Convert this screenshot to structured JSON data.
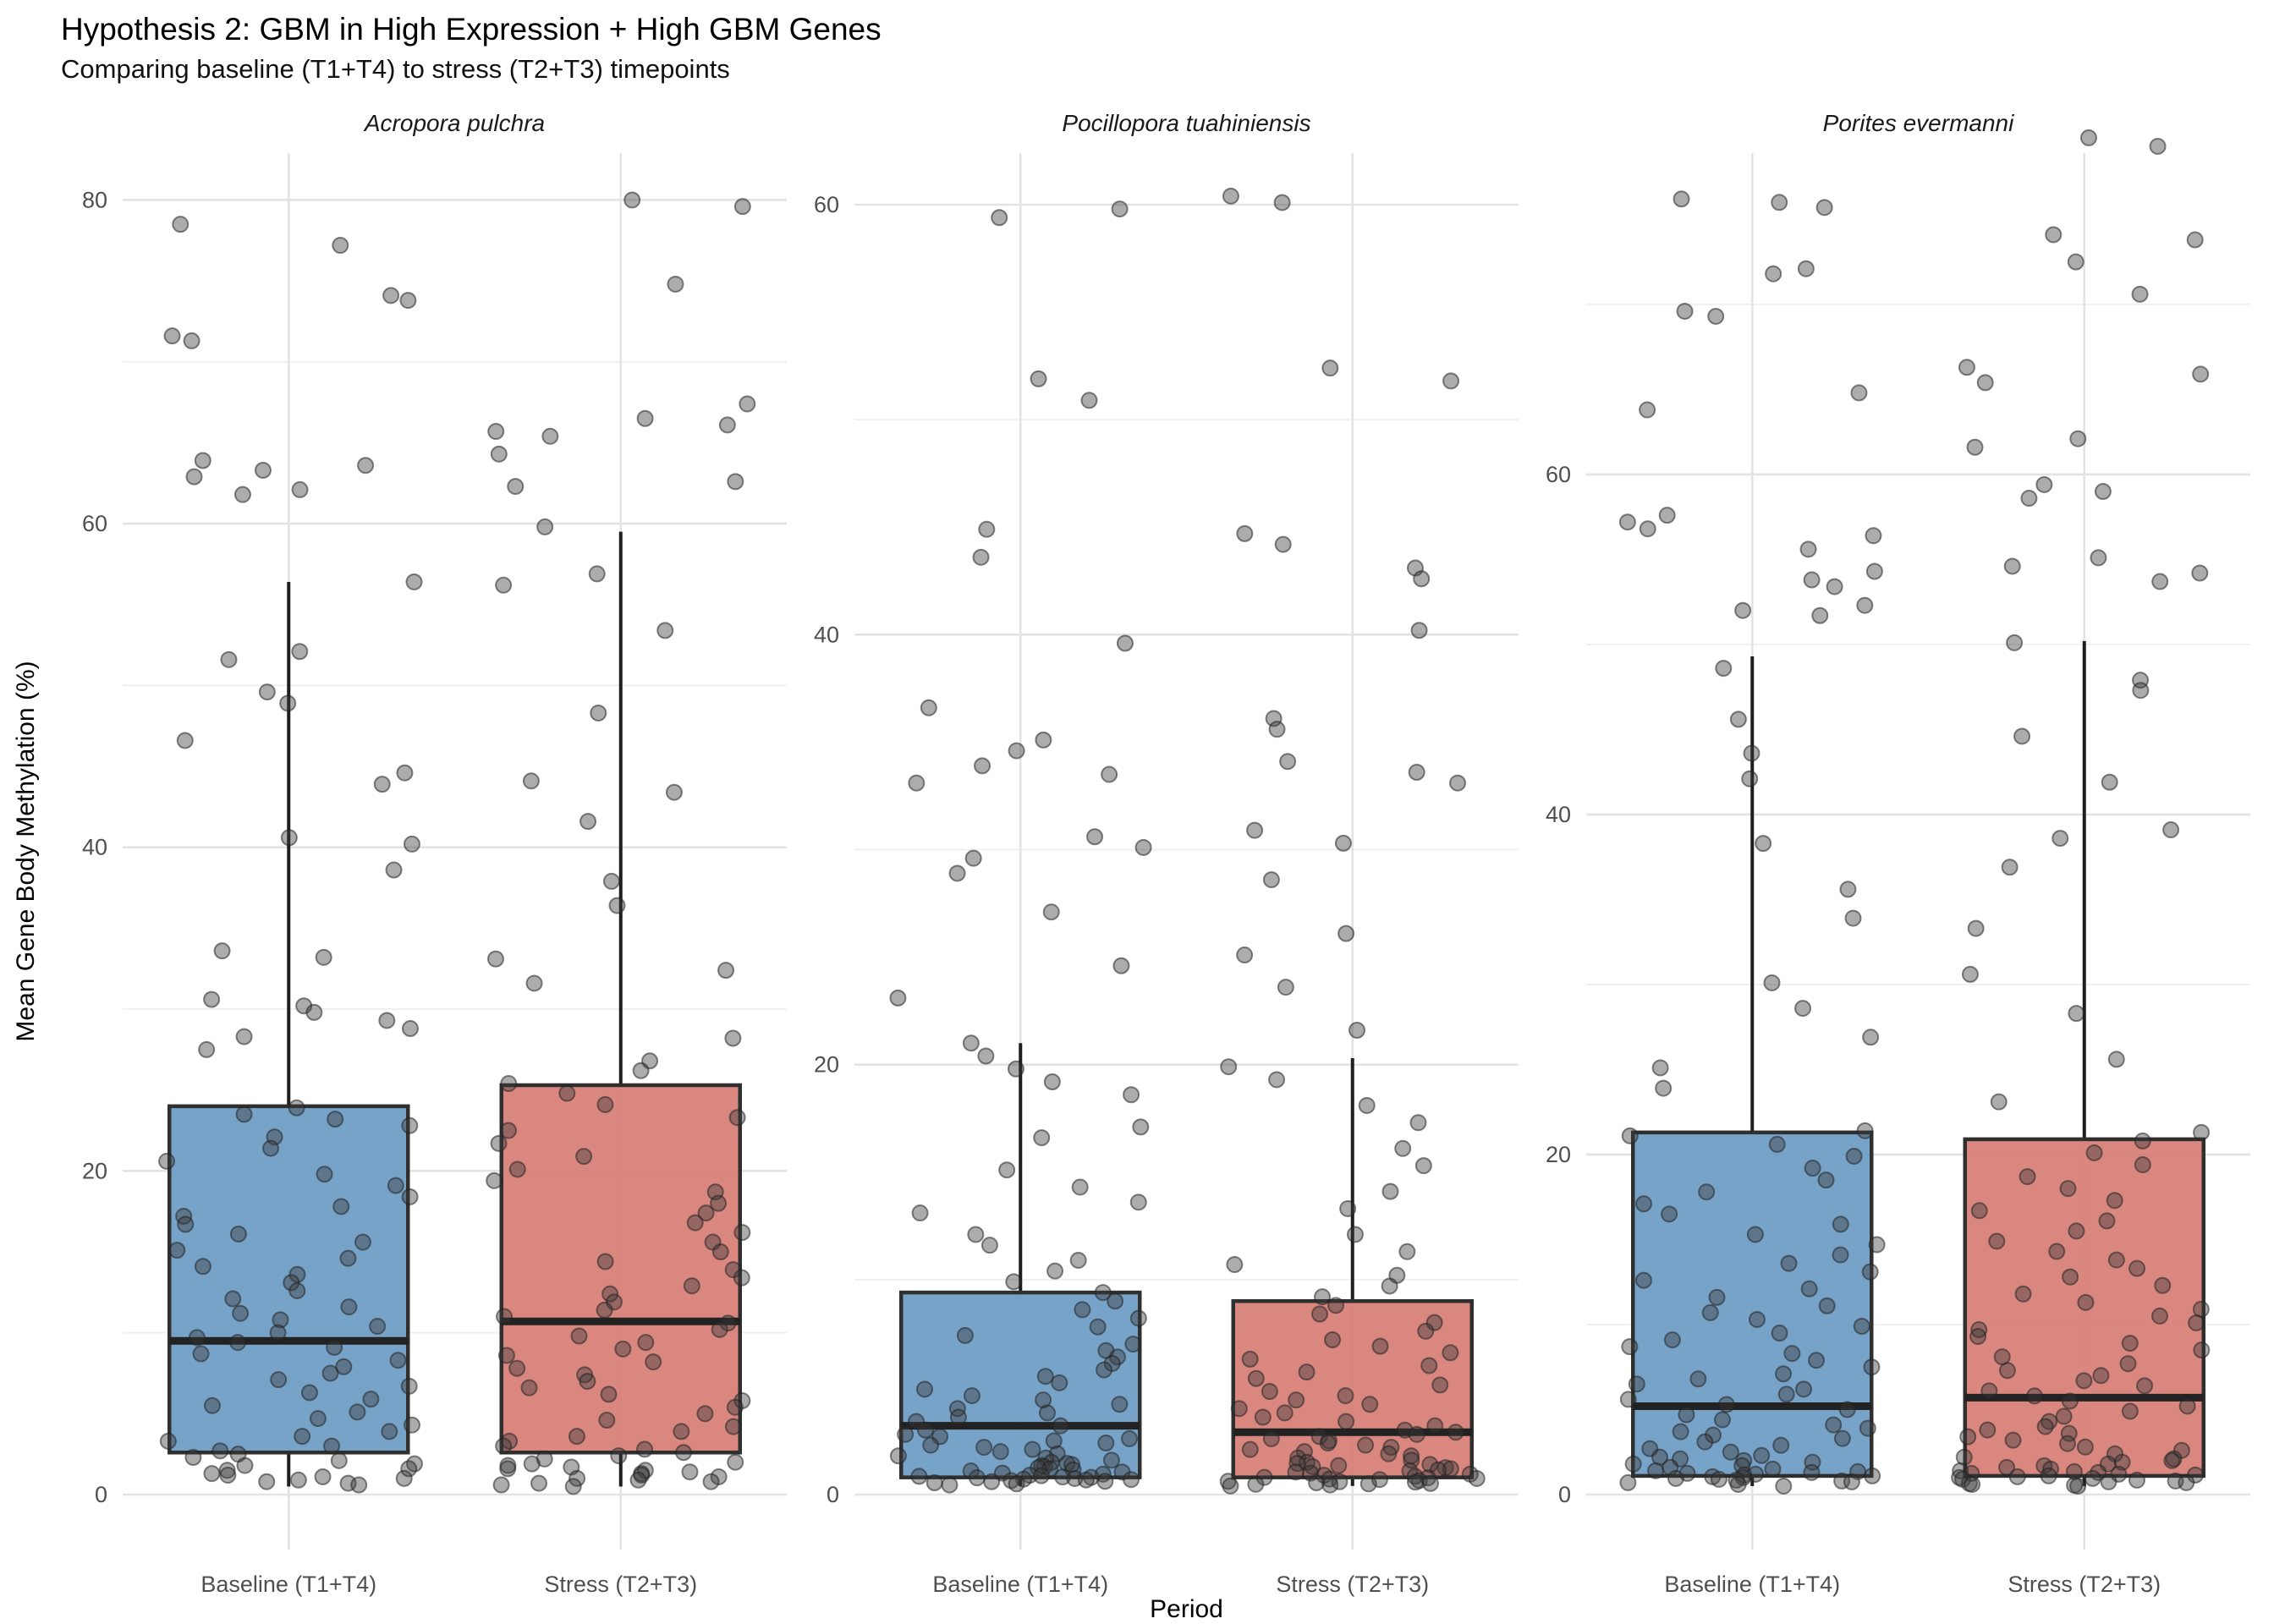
{
  "title": "Hypothesis 2: GBM in High Expression + High GBM Genes",
  "subtitle": "Comparing baseline (T1+T4) to stress (T2+T3) timepoints",
  "colors": {
    "baseline_fill": "#6b9bc3",
    "stress_fill": "#d77d75",
    "box_stroke": "#2f2f2f",
    "point_fill": "#3a3a3a",
    "grid_major": "#e3e3e3",
    "grid_minor": "#f0f0f0",
    "tick_text": "#4f4f4f"
  },
  "chart_data": {
    "type": "boxplot-jitter",
    "title": "Hypothesis 2: GBM in High Expression + High GBM Genes",
    "subtitle": "Comparing baseline (T1+T4) to stress (T2+T3) timepoints",
    "xlabel": "Period",
    "ylabel": "Mean Gene Body Methylation (%)",
    "categories": [
      "Baseline (T1+T4)",
      "Stress (T2+T3)"
    ],
    "grid": "on",
    "legend": "none",
    "panels": [
      {
        "species": "Acropora pulchra",
        "y_ticks": [
          0,
          20,
          40,
          60,
          80
        ],
        "y_axis_top": 82.9,
        "boxes": {
          "baseline": {
            "q1": 2.6,
            "median": 9.5,
            "q3": 24.0,
            "whisker_low": 0.5,
            "whisker_high": 56.4
          },
          "stress": {
            "q1": 2.6,
            "median": 10.7,
            "q3": 25.3,
            "whisker_low": 0.5,
            "whisker_high": 59.5
          }
        },
        "points": {
          "baseline": [
            78.5,
            77.2,
            74.1,
            73.8,
            71.6,
            71.3,
            63.9,
            63.6,
            63.3,
            62.9,
            62.1,
            61.8,
            56.4,
            52.1,
            51.6,
            49.6,
            48.9,
            46.6,
            44.6,
            43.9,
            40.6,
            40.2,
            38.6,
            33.6,
            33.2,
            30.6,
            30.2,
            29.8,
            29.3,
            28.8,
            28.3,
            27.5,
            23.9,
            23.5,
            23.2,
            22.8,
            22.1,
            21.4,
            20.6,
            19.8,
            19.1,
            18.4,
            17.8,
            17.2,
            16.7,
            16.1,
            15.6,
            15.1,
            14.6,
            14.1,
            13.6,
            13.1,
            12.6,
            12.1,
            11.6,
            11.2,
            10.8,
            10.4,
            10.0,
            9.7,
            9.4,
            9.1,
            8.7,
            8.3,
            7.9,
            7.5,
            7.1,
            6.7,
            6.3,
            5.9,
            5.5,
            5.1,
            4.7,
            4.3,
            3.9,
            3.6,
            3.3,
            3.0,
            2.7,
            2.5,
            2.3,
            2.1,
            1.9,
            1.8,
            1.6,
            1.5,
            1.3,
            1.2,
            1.1,
            1.0,
            0.9,
            0.8,
            0.7,
            0.6
          ],
          "stress": [
            80.0,
            79.6,
            74.8,
            67.4,
            66.5,
            66.1,
            65.7,
            65.4,
            64.3,
            62.6,
            62.3,
            59.8,
            56.9,
            56.2,
            53.4,
            48.3,
            44.1,
            43.4,
            41.6,
            37.9,
            36.4,
            33.1,
            32.4,
            31.6,
            28.2,
            26.8,
            26.2,
            25.4,
            24.8,
            24.1,
            23.3,
            22.5,
            21.7,
            20.9,
            20.1,
            19.4,
            18.7,
            18.0,
            17.4,
            16.8,
            16.2,
            15.6,
            15.0,
            14.4,
            13.9,
            13.4,
            12.9,
            12.4,
            11.9,
            11.4,
            11.0,
            10.6,
            10.2,
            9.8,
            9.4,
            9.0,
            8.6,
            8.2,
            7.8,
            7.4,
            7.0,
            6.6,
            6.2,
            5.8,
            5.4,
            5.0,
            4.6,
            4.2,
            3.9,
            3.6,
            3.3,
            3.0,
            2.8,
            2.6,
            2.4,
            2.2,
            2.0,
            1.9,
            1.8,
            1.7,
            1.6,
            1.5,
            1.4,
            1.3,
            1.2,
            1.1,
            1.0,
            0.9,
            0.8,
            0.7,
            0.6,
            0.5
          ]
        }
      },
      {
        "species": "Pocillopora tuahiniensis",
        "y_ticks": [
          0,
          20,
          40,
          60
        ],
        "y_axis_top": 62.4,
        "boxes": {
          "baseline": {
            "q1": 0.8,
            "median": 3.2,
            "q3": 9.4,
            "whisker_low": 0.4,
            "whisker_high": 21.0
          },
          "stress": {
            "q1": 0.8,
            "median": 2.9,
            "q3": 9.0,
            "whisker_low": 0.4,
            "whisker_high": 20.3
          }
        },
        "points": {
          "baseline": [
            59.8,
            59.4,
            51.9,
            50.9,
            44.9,
            43.6,
            39.6,
            36.6,
            35.1,
            34.6,
            33.9,
            33.5,
            33.1,
            30.6,
            30.1,
            29.6,
            28.9,
            27.1,
            24.6,
            23.1,
            21.0,
            20.4,
            19.8,
            19.2,
            18.6,
            17.1,
            16.6,
            15.1,
            14.3,
            13.6,
            13.1,
            12.1,
            11.6,
            10.9,
            10.4,
            9.9,
            9.4,
            9.0,
            8.6,
            8.2,
            7.8,
            7.4,
            7.0,
            6.7,
            6.4,
            6.1,
            5.8,
            5.5,
            5.2,
            4.9,
            4.6,
            4.4,
            4.2,
            4.0,
            3.8,
            3.6,
            3.4,
            3.2,
            3.0,
            2.8,
            2.7,
            2.6,
            2.5,
            2.4,
            2.3,
            2.2,
            2.1,
            2.0,
            1.9,
            1.8,
            1.7,
            1.6,
            1.5,
            1.45,
            1.4,
            1.35,
            1.3,
            1.25,
            1.2,
            1.15,
            1.1,
            1.05,
            1.0,
            0.95,
            0.9,
            0.88,
            0.85,
            0.82,
            0.8,
            0.78,
            0.75,
            0.72,
            0.7,
            0.68,
            0.65,
            0.62,
            0.6,
            0.55,
            0.5,
            0.45
          ],
          "stress": [
            60.4,
            60.1,
            52.4,
            51.8,
            44.7,
            44.2,
            43.1,
            42.6,
            40.2,
            36.1,
            35.6,
            34.1,
            33.6,
            33.1,
            30.9,
            30.3,
            28.6,
            26.1,
            25.1,
            23.6,
            21.6,
            19.9,
            19.3,
            18.1,
            17.3,
            16.1,
            15.3,
            14.1,
            13.3,
            12.1,
            11.3,
            10.7,
            10.2,
            9.7,
            9.2,
            8.8,
            8.4,
            8.0,
            7.6,
            7.2,
            6.9,
            6.6,
            6.3,
            6.0,
            5.7,
            5.4,
            5.1,
            4.8,
            4.6,
            4.4,
            4.2,
            4.0,
            3.8,
            3.6,
            3.4,
            3.2,
            3.0,
            2.9,
            2.8,
            2.7,
            2.6,
            2.5,
            2.4,
            2.3,
            2.2,
            2.1,
            2.0,
            1.9,
            1.8,
            1.7,
            1.6,
            1.5,
            1.45,
            1.4,
            1.35,
            1.3,
            1.25,
            1.2,
            1.15,
            1.1,
            1.05,
            1.0,
            0.95,
            0.9,
            0.85,
            0.8,
            0.78,
            0.75,
            0.72,
            0.7,
            0.65,
            0.62,
            0.6,
            0.58,
            0.55,
            0.52,
            0.5,
            0.48,
            0.45,
            0.4
          ]
        }
      },
      {
        "species": "Porites evermanni",
        "y_ticks": [
          0,
          20,
          40,
          60
        ],
        "y_axis_top": 78.9,
        "boxes": {
          "baseline": {
            "q1": 1.1,
            "median": 5.2,
            "q3": 21.3,
            "whisker_low": 0.5,
            "whisker_high": 49.3
          },
          "stress": {
            "q1": 1.1,
            "median": 5.7,
            "q3": 20.9,
            "whisker_low": 0.5,
            "whisker_high": 50.2
          }
        },
        "points": {
          "baseline": [
            76.2,
            76.0,
            75.7,
            72.1,
            71.8,
            69.6,
            69.3,
            64.8,
            63.8,
            57.6,
            57.2,
            56.8,
            56.4,
            55.6,
            54.3,
            53.8,
            53.4,
            52.3,
            52.0,
            51.7,
            48.6,
            45.6,
            43.6,
            42.1,
            38.3,
            35.6,
            33.9,
            30.1,
            28.6,
            26.9,
            25.1,
            23.9,
            21.4,
            21.1,
            20.6,
            19.9,
            19.2,
            18.5,
            17.8,
            17.1,
            16.5,
            15.9,
            15.3,
            14.7,
            14.1,
            13.6,
            13.1,
            12.6,
            12.1,
            11.6,
            11.1,
            10.7,
            10.3,
            9.9,
            9.5,
            9.1,
            8.7,
            8.3,
            7.9,
            7.5,
            7.1,
            6.8,
            6.5,
            6.2,
            5.9,
            5.6,
            5.3,
            5.0,
            4.7,
            4.4,
            4.1,
            3.9,
            3.7,
            3.5,
            3.3,
            3.1,
            2.9,
            2.7,
            2.5,
            2.3,
            2.2,
            2.1,
            2.0,
            1.9,
            1.8,
            1.7,
            1.6,
            1.5,
            1.4,
            1.35,
            1.3,
            1.25,
            1.2,
            1.15,
            1.1,
            1.05,
            1.0,
            0.95,
            0.9,
            0.85,
            0.8,
            0.75,
            0.7,
            0.6,
            0.5
          ],
          "stress": [
            79.8,
            79.3,
            74.1,
            73.8,
            72.5,
            70.6,
            66.3,
            65.9,
            65.4,
            62.1,
            61.6,
            59.4,
            59.0,
            58.6,
            55.1,
            54.6,
            54.2,
            53.7,
            50.1,
            47.9,
            47.3,
            44.6,
            41.9,
            39.1,
            38.6,
            36.9,
            33.3,
            30.6,
            28.3,
            25.6,
            23.1,
            21.3,
            20.8,
            20.1,
            19.4,
            18.7,
            18.0,
            17.3,
            16.7,
            16.1,
            15.5,
            14.9,
            14.3,
            13.8,
            13.3,
            12.8,
            12.3,
            11.8,
            11.3,
            10.9,
            10.5,
            10.1,
            9.7,
            9.3,
            8.9,
            8.5,
            8.1,
            7.7,
            7.3,
            7.0,
            6.7,
            6.4,
            6.1,
            5.8,
            5.5,
            5.2,
            4.9,
            4.6,
            4.3,
            4.0,
            3.8,
            3.6,
            3.4,
            3.2,
            3.0,
            2.8,
            2.6,
            2.4,
            2.2,
            2.1,
            2.0,
            1.9,
            1.8,
            1.7,
            1.6,
            1.5,
            1.4,
            1.35,
            1.3,
            1.25,
            1.2,
            1.15,
            1.1,
            1.05,
            1.0,
            0.95,
            0.9,
            0.85,
            0.8,
            0.75,
            0.7,
            0.65,
            0.6,
            0.55,
            0.5
          ]
        }
      }
    ]
  }
}
